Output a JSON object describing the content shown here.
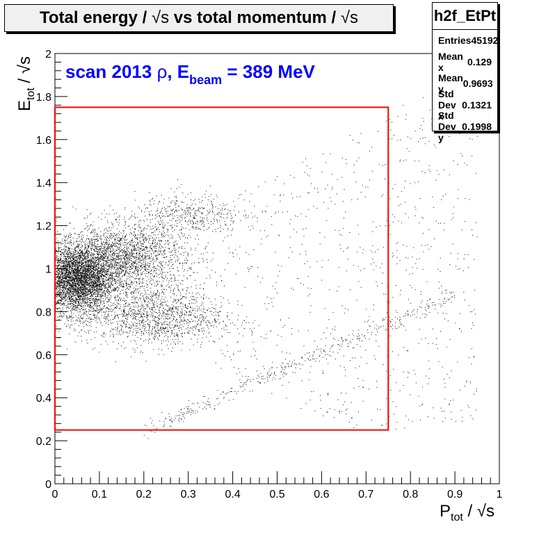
{
  "title": {
    "prefix": "Total energy /",
    "sqrt1": "√s",
    "middle": "vs total momentum /",
    "sqrt2": "√s"
  },
  "stats": {
    "name": "h2f_EtPt",
    "rows": [
      {
        "label": "Entries",
        "value": "45192"
      },
      {
        "label": "Mean x",
        "value": "0.129"
      },
      {
        "label": "Mean y",
        "value": "0.9693"
      },
      {
        "label": "Std Dev x",
        "value": "0.1321"
      },
      {
        "label": "Std Dev y",
        "value": "0.1998"
      }
    ]
  },
  "annotation": {
    "text": "scan 2013",
    "rho": "ρ",
    "E": ", E",
    "sub": "beam",
    "value": " = 389 MeV",
    "color": "#0000ff"
  },
  "axis_labels": {
    "x_main": "P",
    "x_sub": "tot",
    "x_tail": " / √s",
    "y_main": "E",
    "y_sub": "tot",
    "y_tail": " / √s"
  },
  "chart_data": {
    "type": "scatter",
    "xlim": [
      0,
      1
    ],
    "ylim": [
      0,
      2
    ],
    "x_ticks": [
      "0",
      "0.1",
      "0.2",
      "0.3",
      "0.4",
      "0.5",
      "0.6",
      "0.7",
      "0.8",
      "0.9",
      "1"
    ],
    "y_ticks": [
      "0",
      "0.2",
      "0.4",
      "0.6",
      "0.8",
      "1",
      "1.2",
      "1.4",
      "1.6",
      "1.8",
      "2"
    ],
    "grid": false,
    "selection_box": {
      "x": [
        0,
        0.75
      ],
      "y": [
        0.25,
        1.75
      ],
      "color": "#ff0000"
    },
    "dense_regions": [
      {
        "x": 0.05,
        "y": 0.95,
        "sx": 0.04,
        "sy": 0.08
      },
      {
        "x": 0.15,
        "y": 1.05,
        "sx": 0.07,
        "sy": 0.08
      },
      {
        "x": 0.22,
        "y": 0.78,
        "sx": 0.08,
        "sy": 0.07
      },
      {
        "x": 0.3,
        "y": 1.25,
        "sx": 0.06,
        "sy": 0.05
      }
    ]
  }
}
